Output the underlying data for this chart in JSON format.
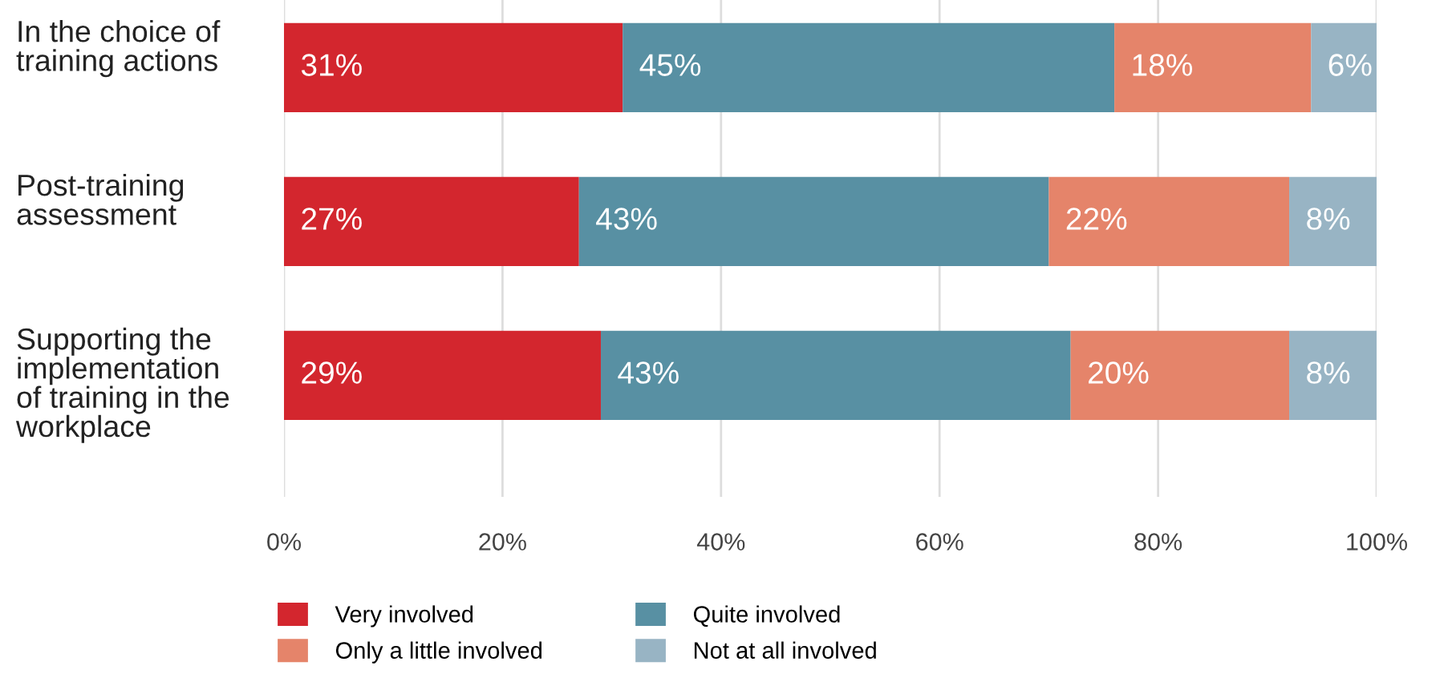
{
  "chart_data": {
    "type": "bar",
    "orientation": "horizontal",
    "stacked": true,
    "categories": [
      "In the choice of\ntraining actions",
      "Post-training\nassessment",
      "Supporting the\nimplementation\nof training in the\nworkplace"
    ],
    "series": [
      {
        "name": "Very involved",
        "color": "#d3262e",
        "values": [
          31,
          27,
          29
        ],
        "value_labels": [
          "31%",
          "27%",
          "29%"
        ]
      },
      {
        "name": "Quite involved",
        "color": "#5890a3",
        "values": [
          45,
          43,
          43
        ],
        "value_labels": [
          "45%",
          "43%",
          "43%"
        ]
      },
      {
        "name": "Only a little involved",
        "color": "#e5846a",
        "values": [
          18,
          22,
          20
        ],
        "value_labels": [
          "18%",
          "22%",
          "20%"
        ]
      },
      {
        "name": "Not at all involved",
        "color": "#98b4c4",
        "values": [
          6,
          8,
          8
        ],
        "value_labels": [
          "6%",
          "8%",
          "8%"
        ]
      }
    ],
    "xlim": [
      0,
      100
    ],
    "xticks": [
      {
        "value": 0,
        "label": "0%"
      },
      {
        "value": 20,
        "label": "20%"
      },
      {
        "value": 40,
        "label": "40%"
      },
      {
        "value": 60,
        "label": "60%"
      },
      {
        "value": 80,
        "label": "80%"
      },
      {
        "value": 100,
        "label": "100%"
      }
    ],
    "grid": "x",
    "legend": "bottom"
  }
}
